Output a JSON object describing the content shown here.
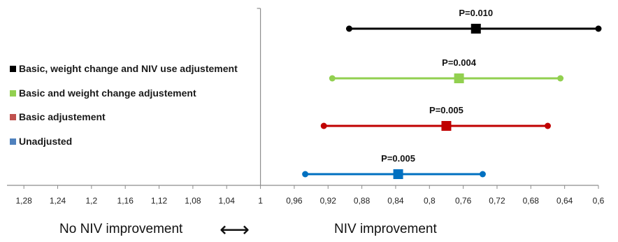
{
  "chart_data": {
    "type": "forest",
    "x_ticks": [
      "1,28",
      "1,24",
      "1,2",
      "1,16",
      "1,12",
      "1,08",
      "1,04",
      "1",
      "0,96",
      "0,92",
      "0,88",
      "0,84",
      "0,8",
      "0,76",
      "0,72",
      "0,68",
      "0,64",
      "0,6"
    ],
    "x_reversed": true,
    "xlim": [
      1.3,
      0.6
    ],
    "reference_line": 1.0,
    "series": [
      {
        "name": "Basic, weight change and NIV use adjustement",
        "color": "#000000",
        "estimate": 0.745,
        "ci_low": 0.6,
        "ci_high": 0.895,
        "p_value": "P=0.010"
      },
      {
        "name": "Basic and weight change adjustement",
        "color": "#92D050",
        "estimate": 0.765,
        "ci_low": 0.645,
        "ci_high": 0.915,
        "p_value": "P=0.004"
      },
      {
        "name": "Basic adjustement",
        "color": "#C00000",
        "estimate": 0.78,
        "ci_low": 0.66,
        "ci_high": 0.925,
        "p_value": "P=0.005"
      },
      {
        "name": "Unadjusted",
        "color": "#0070C0",
        "estimate": 0.837,
        "ci_low": 0.737,
        "ci_high": 0.947,
        "p_value": "P=0.005"
      }
    ],
    "legend_swatch_colors": [
      "#000000",
      "#92D050",
      "#C0504D",
      "#4F81BD"
    ],
    "left_label": "No NIV improvement",
    "right_label": "NIV improvement",
    "arrow_glyph": "⟷",
    "grid": false,
    "legend_position": "left"
  }
}
